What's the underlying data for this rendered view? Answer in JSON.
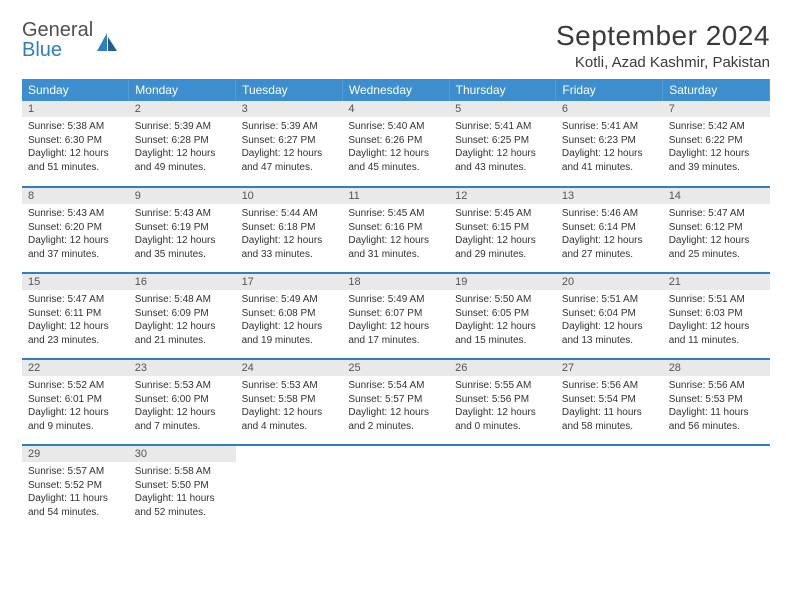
{
  "brand": {
    "word1": "General",
    "word2": "Blue"
  },
  "title": "September 2024",
  "location": "Kotli, Azad Kashmir, Pakistan",
  "theme": {
    "header_bg": "#3c8ecf",
    "header_text": "#ffffff",
    "daynum_bg": "#e9e9e9",
    "row_border": "#2f7fc2",
    "logo_accent": "#2f7fc2"
  },
  "weekdays": [
    "Sunday",
    "Monday",
    "Tuesday",
    "Wednesday",
    "Thursday",
    "Friday",
    "Saturday"
  ],
  "days": [
    {
      "n": "1",
      "sr": "5:38 AM",
      "ss": "6:30 PM",
      "dl": "12 hours and 51 minutes."
    },
    {
      "n": "2",
      "sr": "5:39 AM",
      "ss": "6:28 PM",
      "dl": "12 hours and 49 minutes."
    },
    {
      "n": "3",
      "sr": "5:39 AM",
      "ss": "6:27 PM",
      "dl": "12 hours and 47 minutes."
    },
    {
      "n": "4",
      "sr": "5:40 AM",
      "ss": "6:26 PM",
      "dl": "12 hours and 45 minutes."
    },
    {
      "n": "5",
      "sr": "5:41 AM",
      "ss": "6:25 PM",
      "dl": "12 hours and 43 minutes."
    },
    {
      "n": "6",
      "sr": "5:41 AM",
      "ss": "6:23 PM",
      "dl": "12 hours and 41 minutes."
    },
    {
      "n": "7",
      "sr": "5:42 AM",
      "ss": "6:22 PM",
      "dl": "12 hours and 39 minutes."
    },
    {
      "n": "8",
      "sr": "5:43 AM",
      "ss": "6:20 PM",
      "dl": "12 hours and 37 minutes."
    },
    {
      "n": "9",
      "sr": "5:43 AM",
      "ss": "6:19 PM",
      "dl": "12 hours and 35 minutes."
    },
    {
      "n": "10",
      "sr": "5:44 AM",
      "ss": "6:18 PM",
      "dl": "12 hours and 33 minutes."
    },
    {
      "n": "11",
      "sr": "5:45 AM",
      "ss": "6:16 PM",
      "dl": "12 hours and 31 minutes."
    },
    {
      "n": "12",
      "sr": "5:45 AM",
      "ss": "6:15 PM",
      "dl": "12 hours and 29 minutes."
    },
    {
      "n": "13",
      "sr": "5:46 AM",
      "ss": "6:14 PM",
      "dl": "12 hours and 27 minutes."
    },
    {
      "n": "14",
      "sr": "5:47 AM",
      "ss": "6:12 PM",
      "dl": "12 hours and 25 minutes."
    },
    {
      "n": "15",
      "sr": "5:47 AM",
      "ss": "6:11 PM",
      "dl": "12 hours and 23 minutes."
    },
    {
      "n": "16",
      "sr": "5:48 AM",
      "ss": "6:09 PM",
      "dl": "12 hours and 21 minutes."
    },
    {
      "n": "17",
      "sr": "5:49 AM",
      "ss": "6:08 PM",
      "dl": "12 hours and 19 minutes."
    },
    {
      "n": "18",
      "sr": "5:49 AM",
      "ss": "6:07 PM",
      "dl": "12 hours and 17 minutes."
    },
    {
      "n": "19",
      "sr": "5:50 AM",
      "ss": "6:05 PM",
      "dl": "12 hours and 15 minutes."
    },
    {
      "n": "20",
      "sr": "5:51 AM",
      "ss": "6:04 PM",
      "dl": "12 hours and 13 minutes."
    },
    {
      "n": "21",
      "sr": "5:51 AM",
      "ss": "6:03 PM",
      "dl": "12 hours and 11 minutes."
    },
    {
      "n": "22",
      "sr": "5:52 AM",
      "ss": "6:01 PM",
      "dl": "12 hours and 9 minutes."
    },
    {
      "n": "23",
      "sr": "5:53 AM",
      "ss": "6:00 PM",
      "dl": "12 hours and 7 minutes."
    },
    {
      "n": "24",
      "sr": "5:53 AM",
      "ss": "5:58 PM",
      "dl": "12 hours and 4 minutes."
    },
    {
      "n": "25",
      "sr": "5:54 AM",
      "ss": "5:57 PM",
      "dl": "12 hours and 2 minutes."
    },
    {
      "n": "26",
      "sr": "5:55 AM",
      "ss": "5:56 PM",
      "dl": "12 hours and 0 minutes."
    },
    {
      "n": "27",
      "sr": "5:56 AM",
      "ss": "5:54 PM",
      "dl": "11 hours and 58 minutes."
    },
    {
      "n": "28",
      "sr": "5:56 AM",
      "ss": "5:53 PM",
      "dl": "11 hours and 56 minutes."
    },
    {
      "n": "29",
      "sr": "5:57 AM",
      "ss": "5:52 PM",
      "dl": "11 hours and 54 minutes."
    },
    {
      "n": "30",
      "sr": "5:58 AM",
      "ss": "5:50 PM",
      "dl": "11 hours and 52 minutes."
    }
  ],
  "labels": {
    "sunrise": "Sunrise:",
    "sunset": "Sunset:",
    "daylight": "Daylight:"
  }
}
